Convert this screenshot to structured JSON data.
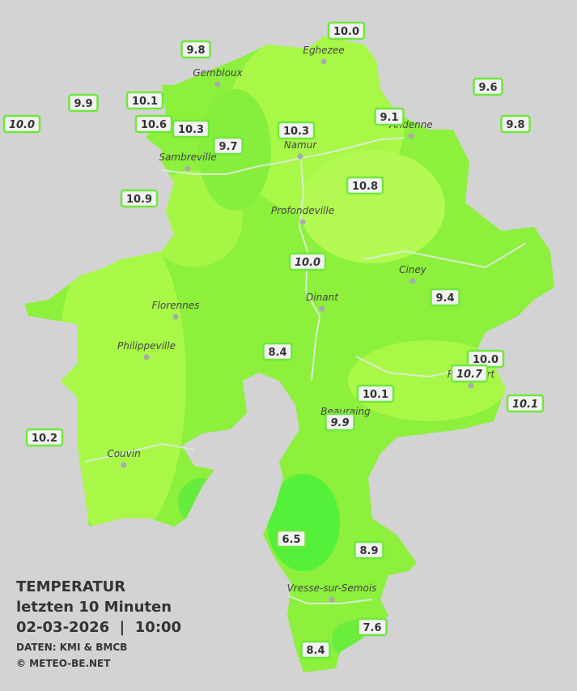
{
  "legend": {
    "title": "TEMPERATUR",
    "subtitle": "letzten 10 Minuten",
    "datetime": "02-03-2026  |  10:00",
    "source": "DATEN: KMI & BMCB",
    "credit": "© METEO-BE.NET"
  },
  "cities": [
    {
      "name": "Eghezee"
    },
    {
      "name": "Gembloux"
    },
    {
      "name": "Andenne"
    },
    {
      "name": "Namur"
    },
    {
      "name": "Sambreville"
    },
    {
      "name": "Profondeville"
    },
    {
      "name": "Ciney"
    },
    {
      "name": "Dinant"
    },
    {
      "name": "Florennes"
    },
    {
      "name": "Philippeville"
    },
    {
      "name": "Rochefort"
    },
    {
      "name": "Beauraing"
    },
    {
      "name": "Couvin"
    },
    {
      "name": "Vresse-sur-Semois"
    }
  ],
  "stations": [
    {
      "label": "10.0",
      "italic": false
    },
    {
      "label": "9.8",
      "italic": false
    },
    {
      "label": "9.9",
      "italic": false
    },
    {
      "label": "10.1",
      "italic": false
    },
    {
      "label": "10.0",
      "italic": true
    },
    {
      "label": "10.6",
      "italic": false
    },
    {
      "label": "10.3",
      "italic": false
    },
    {
      "label": "9.7",
      "italic": false
    },
    {
      "label": "10.3",
      "italic": false
    },
    {
      "label": "9.1",
      "italic": false
    },
    {
      "label": "9.6",
      "italic": false
    },
    {
      "label": "9.8",
      "italic": false
    },
    {
      "label": "10.9",
      "italic": false
    },
    {
      "label": "10.8",
      "italic": false
    },
    {
      "label": "10.0",
      "italic": true
    },
    {
      "label": "9.4",
      "italic": false
    },
    {
      "label": "8.4",
      "italic": false
    },
    {
      "label": "10.0",
      "italic": false
    },
    {
      "label": "10.7",
      "italic": true
    },
    {
      "label": "10.1",
      "italic": false
    },
    {
      "label": "10.1",
      "italic": true
    },
    {
      "label": "9.9",
      "italic": true
    },
    {
      "label": "10.2",
      "italic": false
    },
    {
      "label": "6.5",
      "italic": false
    },
    {
      "label": "8.9",
      "italic": false
    },
    {
      "label": "7.6",
      "italic": false
    },
    {
      "label": "8.4",
      "italic": false
    }
  ]
}
